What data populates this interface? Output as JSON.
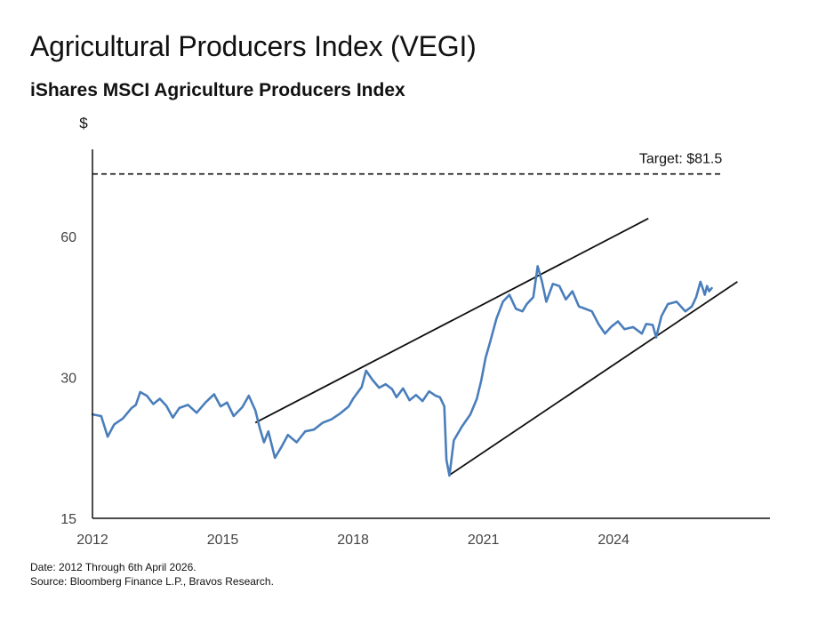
{
  "header": {
    "title": "Agricultural Producers Index (VEGI)",
    "subtitle": "iShares MSCI Agriculture Producers Index"
  },
  "footer": {
    "date_note": "Date: 2012 Through 6th April 2026.",
    "source_note": "Source: Bloomberg Finance L.P., Bravos Research."
  },
  "colors": {
    "series": "#4a7ebb",
    "axis": "#111111",
    "trendline": "#111111"
  },
  "chart_data": {
    "type": "line",
    "title": "Agricultural Producers Index (VEGI)",
    "subtitle": "iShares MSCI Agriculture Producers Index",
    "ylabel": "$",
    "xlabel": "",
    "y_scale": "log",
    "xlim": [
      2012.0,
      2027.6
    ],
    "ylim": [
      15,
      92
    ],
    "x_ticks": [
      2012,
      2015,
      2018,
      2021,
      2024
    ],
    "x_tick_labels": [
      "2012",
      "2015",
      "2018",
      "2021",
      "2024"
    ],
    "y_ticks": [
      15,
      30,
      60
    ],
    "y_tick_labels": [
      "15",
      "30",
      "60"
    ],
    "grid": false,
    "series": [
      {
        "values": [
          [
            2012.0,
            25.0
          ],
          [
            2012.2,
            24.8
          ],
          [
            2012.35,
            22.4
          ],
          [
            2012.5,
            23.8
          ],
          [
            2012.7,
            24.5
          ],
          [
            2012.9,
            25.8
          ],
          [
            2013.0,
            26.2
          ],
          [
            2013.1,
            27.9
          ],
          [
            2013.25,
            27.4
          ],
          [
            2013.4,
            26.3
          ],
          [
            2013.55,
            27.0
          ],
          [
            2013.7,
            26.1
          ],
          [
            2013.85,
            24.6
          ],
          [
            2014.0,
            25.8
          ],
          [
            2014.2,
            26.2
          ],
          [
            2014.4,
            25.2
          ],
          [
            2014.6,
            26.5
          ],
          [
            2014.8,
            27.6
          ],
          [
            2014.95,
            26.0
          ],
          [
            2015.1,
            26.5
          ],
          [
            2015.25,
            24.8
          ],
          [
            2015.45,
            25.9
          ],
          [
            2015.6,
            27.4
          ],
          [
            2015.75,
            25.5
          ],
          [
            2015.85,
            23.4
          ],
          [
            2015.95,
            21.8
          ],
          [
            2016.05,
            23.0
          ],
          [
            2016.2,
            20.2
          ],
          [
            2016.35,
            21.3
          ],
          [
            2016.5,
            22.6
          ],
          [
            2016.7,
            21.8
          ],
          [
            2016.9,
            23.0
          ],
          [
            2017.1,
            23.2
          ],
          [
            2017.3,
            24.0
          ],
          [
            2017.5,
            24.4
          ],
          [
            2017.7,
            25.1
          ],
          [
            2017.9,
            26.0
          ],
          [
            2018.0,
            27.0
          ],
          [
            2018.1,
            27.8
          ],
          [
            2018.2,
            28.6
          ],
          [
            2018.3,
            31.0
          ],
          [
            2018.45,
            29.6
          ],
          [
            2018.6,
            28.5
          ],
          [
            2018.75,
            29.0
          ],
          [
            2018.9,
            28.3
          ],
          [
            2019.0,
            27.2
          ],
          [
            2019.15,
            28.4
          ],
          [
            2019.3,
            26.8
          ],
          [
            2019.45,
            27.5
          ],
          [
            2019.6,
            26.7
          ],
          [
            2019.75,
            28.0
          ],
          [
            2019.9,
            27.4
          ],
          [
            2020.0,
            27.2
          ],
          [
            2020.1,
            26.0
          ],
          [
            2020.15,
            20.0
          ],
          [
            2020.22,
            18.5
          ],
          [
            2020.32,
            22.0
          ],
          [
            2020.5,
            23.5
          ],
          [
            2020.7,
            25.0
          ],
          [
            2020.85,
            27.0
          ],
          [
            2020.95,
            29.5
          ],
          [
            2021.05,
            33.0
          ],
          [
            2021.15,
            35.5
          ],
          [
            2021.3,
            40.0
          ],
          [
            2021.45,
            43.5
          ],
          [
            2021.6,
            45.0
          ],
          [
            2021.75,
            42.0
          ],
          [
            2021.9,
            41.5
          ],
          [
            2022.0,
            43.0
          ],
          [
            2022.15,
            44.5
          ],
          [
            2022.25,
            51.8
          ],
          [
            2022.35,
            48.0
          ],
          [
            2022.45,
            43.5
          ],
          [
            2022.6,
            47.5
          ],
          [
            2022.75,
            47.0
          ],
          [
            2022.9,
            44.0
          ],
          [
            2023.05,
            45.8
          ],
          [
            2023.2,
            42.5
          ],
          [
            2023.35,
            42.0
          ],
          [
            2023.5,
            41.5
          ],
          [
            2023.65,
            39.0
          ],
          [
            2023.8,
            37.2
          ],
          [
            2023.95,
            38.5
          ],
          [
            2024.1,
            39.5
          ],
          [
            2024.25,
            38.0
          ],
          [
            2024.45,
            38.4
          ],
          [
            2024.65,
            37.2
          ],
          [
            2024.75,
            39.0
          ],
          [
            2024.9,
            38.8
          ],
          [
            2024.98,
            36.5
          ],
          [
            2025.1,
            40.5
          ],
          [
            2025.25,
            43.0
          ],
          [
            2025.45,
            43.5
          ],
          [
            2025.65,
            41.5
          ],
          [
            2025.8,
            42.5
          ],
          [
            2025.9,
            44.5
          ],
          [
            2026.0,
            48.0
          ],
          [
            2026.05,
            46.5
          ],
          [
            2026.1,
            45.0
          ],
          [
            2026.15,
            47.0
          ],
          [
            2026.2,
            45.8
          ],
          [
            2026.26,
            46.5
          ]
        ]
      }
    ],
    "reference_lines": [
      {
        "label": "Target: $81.5",
        "y": 81.5,
        "x_start": 2012.0,
        "x_end": 2026.5,
        "style": "dashed"
      }
    ],
    "trendlines": [
      {
        "from": [
          2015.75,
          24.0
        ],
        "to": [
          2024.8,
          65.5
        ]
      },
      {
        "from": [
          2020.2,
          18.5
        ],
        "to": [
          2026.85,
          48.0
        ]
      }
    ]
  }
}
